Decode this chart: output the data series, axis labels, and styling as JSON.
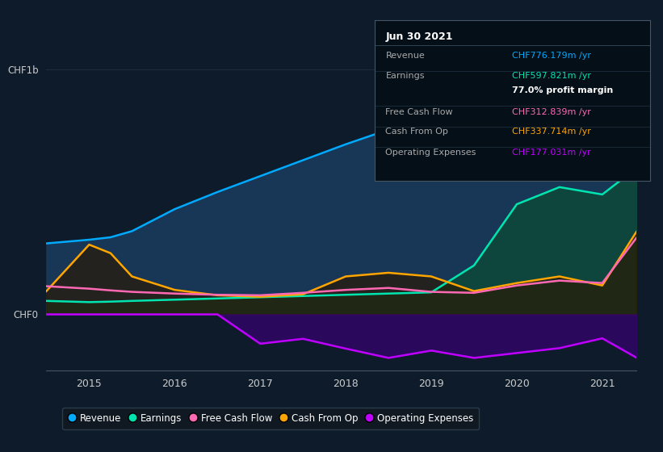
{
  "bg_color": "#0d1b2a",
  "title_box": {
    "date": "Jun 30 2021",
    "rows": [
      {
        "label": "Revenue",
        "value": "CHF776.179m /yr",
        "value_color": "#00aaff"
      },
      {
        "label": "Earnings",
        "value": "CHF597.821m /yr",
        "value_color": "#00e5b0"
      },
      {
        "label": "",
        "value": "77.0% profit margin",
        "value_color": "#ffffff",
        "bold": true
      },
      {
        "label": "Free Cash Flow",
        "value": "CHF312.839m /yr",
        "value_color": "#ff69b4"
      },
      {
        "label": "Cash From Op",
        "value": "CHF337.714m /yr",
        "value_color": "#ffa500"
      },
      {
        "label": "Operating Expenses",
        "value": "CHF177.031m /yr",
        "value_color": "#bf00ff"
      }
    ]
  },
  "x": [
    2014.5,
    2015.0,
    2015.25,
    2015.5,
    2016.0,
    2016.5,
    2017.0,
    2017.5,
    2018.0,
    2018.5,
    2019.0,
    2019.5,
    2020.0,
    2020.5,
    2021.0,
    2021.4
  ],
  "revenue": [
    290,
    305,
    315,
    340,
    430,
    500,
    565,
    630,
    695,
    755,
    800,
    865,
    950,
    980,
    900,
    776
  ],
  "earnings": [
    55,
    50,
    52,
    55,
    60,
    65,
    70,
    75,
    80,
    85,
    90,
    200,
    450,
    520,
    490,
    598
  ],
  "free_cash_flow": [
    115,
    105,
    98,
    92,
    85,
    80,
    78,
    88,
    100,
    108,
    92,
    88,
    118,
    138,
    128,
    313
  ],
  "cash_from_op": [
    95,
    285,
    250,
    155,
    100,
    78,
    72,
    82,
    155,
    170,
    155,
    95,
    128,
    155,
    118,
    338
  ],
  "op_expenses": [
    0,
    0,
    0,
    0,
    0,
    0,
    -120,
    -100,
    -140,
    -178,
    -148,
    -178,
    -158,
    -138,
    -98,
    -177
  ],
  "revenue_color": "#00aaff",
  "revenue_fill": "#1a3a5c",
  "earnings_color": "#00e5b0",
  "earnings_fill": "#0d4a3a",
  "fcf_color": "#ff69b4",
  "cashop_color": "#ffa500",
  "opex_color": "#bf00ff",
  "opex_fill": "#3a007a",
  "ylim_min": -230,
  "ylim_max": 1100,
  "xlabel_ticks": [
    2015,
    2016,
    2017,
    2018,
    2019,
    2020,
    2021
  ],
  "legend_items": [
    {
      "label": "Revenue",
      "color": "#00aaff"
    },
    {
      "label": "Earnings",
      "color": "#00e5b0"
    },
    {
      "label": "Free Cash Flow",
      "color": "#ff69b4"
    },
    {
      "label": "Cash From Op",
      "color": "#ffa500"
    },
    {
      "label": "Operating Expenses",
      "color": "#bf00ff"
    }
  ]
}
